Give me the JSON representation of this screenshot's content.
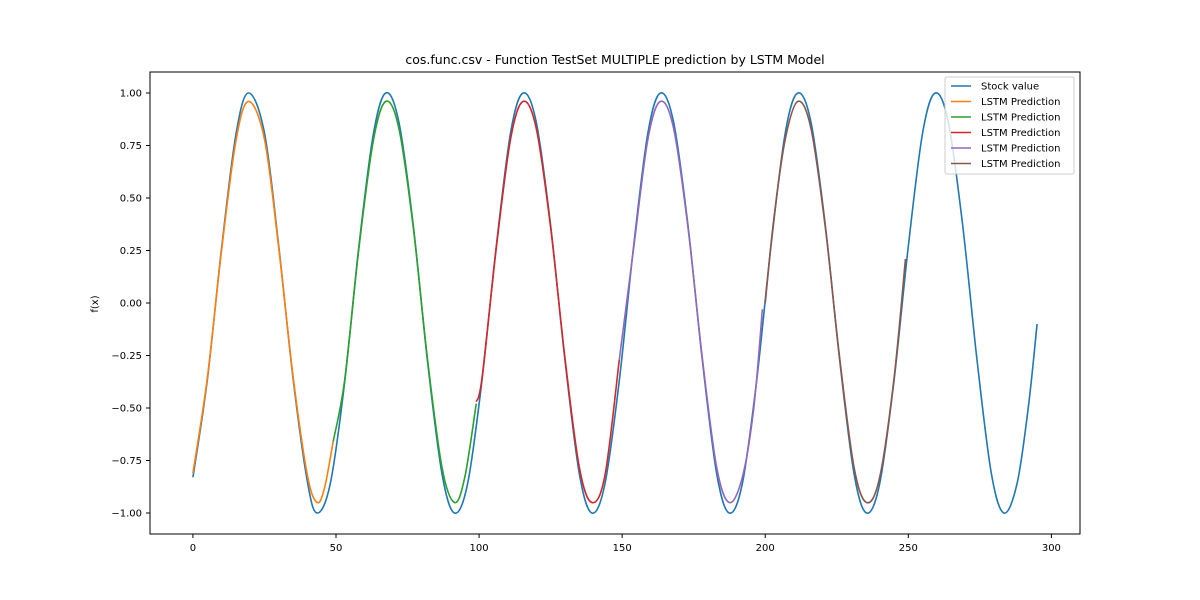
{
  "chart_data": {
    "type": "line",
    "title": "cos.func.csv - Function TestSet MULTIPLE prediction by LSTM Model",
    "xlabel": "",
    "ylabel": "f(x)",
    "xlim": [
      -15,
      310
    ],
    "ylim": [
      -1.1,
      1.1
    ],
    "xticks": [
      0,
      50,
      100,
      150,
      200,
      250,
      300
    ],
    "xtick_labels": [
      "0",
      "50",
      "100",
      "150",
      "200",
      "250",
      "300"
    ],
    "yticks": [
      -1.0,
      -0.75,
      -0.5,
      -0.25,
      0.0,
      0.25,
      0.5,
      0.75,
      1.0
    ],
    "ytick_labels": [
      "−1.00",
      "−0.75",
      "−0.50",
      "−0.25",
      "0.00",
      "0.25",
      "0.50",
      "0.75",
      "1.00"
    ],
    "grid": false,
    "legend_position": "top-right",
    "series": [
      {
        "name": "Stock value",
        "color": "#1f77b4",
        "x": [
          0,
          5,
          10,
          15,
          19.4,
          25,
          30,
          35,
          40,
          43.4,
          48,
          53,
          58,
          63,
          67.4,
          72,
          77,
          82,
          87,
          91.4,
          96,
          101,
          106,
          111,
          115.4,
          120,
          125,
          130,
          135,
          139.4,
          144,
          149,
          154,
          159,
          163.4,
          168,
          173,
          178,
          183,
          187.4,
          192,
          197,
          202,
          207,
          211.4,
          216,
          221,
          226,
          231,
          235.4,
          240,
          245,
          250,
          255,
          259.4,
          264,
          269,
          274,
          279,
          283.4,
          288,
          292,
          295
        ],
        "y": [
          -0.83,
          -0.37,
          0.26,
          0.8,
          1.0,
          0.81,
          0.27,
          -0.36,
          -0.85,
          -1.0,
          -0.86,
          -0.38,
          0.27,
          0.8,
          1.0,
          0.86,
          0.37,
          -0.28,
          -0.81,
          -1.0,
          -0.86,
          -0.37,
          0.27,
          0.81,
          1.0,
          0.86,
          0.37,
          -0.27,
          -0.81,
          -1.0,
          -0.86,
          -0.37,
          0.27,
          0.81,
          1.0,
          0.86,
          0.37,
          -0.27,
          -0.81,
          -1.0,
          -0.86,
          -0.37,
          0.27,
          0.81,
          1.0,
          0.86,
          0.37,
          -0.27,
          -0.81,
          -1.0,
          -0.86,
          -0.37,
          0.27,
          0.81,
          1.0,
          0.86,
          0.37,
          -0.27,
          -0.81,
          -1.0,
          -0.86,
          -0.49,
          -0.1
        ]
      },
      {
        "name": "LSTM Prediction",
        "color": "#ff7f0e",
        "x": [
          0,
          5,
          10,
          15,
          19.4,
          25,
          30,
          35,
          40,
          43.4,
          46,
          49
        ],
        "y": [
          -0.81,
          -0.36,
          0.25,
          0.77,
          0.96,
          0.78,
          0.26,
          -0.35,
          -0.82,
          -0.95,
          -0.88,
          -0.66
        ]
      },
      {
        "name": "LSTM Prediction",
        "color": "#2ca02c",
        "x": [
          49,
          53,
          58,
          63,
          67.4,
          72,
          77,
          82,
          87,
          91.4,
          95,
          99
        ],
        "y": [
          -0.66,
          -0.37,
          0.26,
          0.77,
          0.96,
          0.83,
          0.36,
          -0.27,
          -0.78,
          -0.95,
          -0.83,
          -0.48
        ]
      },
      {
        "name": "LSTM Prediction",
        "color": "#d62728",
        "x": [
          99,
          101,
          106,
          111,
          115.4,
          120,
          125,
          130,
          135,
          139.4,
          144,
          149
        ],
        "y": [
          -0.47,
          -0.36,
          0.26,
          0.78,
          0.96,
          0.83,
          0.36,
          -0.26,
          -0.78,
          -0.95,
          -0.82,
          -0.27
        ]
      },
      {
        "name": "LSTM Prediction",
        "color": "#9467bd",
        "x": [
          149,
          154,
          159,
          163.4,
          168,
          173,
          178,
          183,
          187.4,
          192,
          196,
          199
        ],
        "y": [
          -0.27,
          0.26,
          0.78,
          0.96,
          0.83,
          0.36,
          -0.26,
          -0.78,
          -0.95,
          -0.83,
          -0.5,
          -0.03
        ]
      },
      {
        "name": "LSTM Prediction",
        "color": "#8c564b",
        "x": [
          200,
          203,
          207,
          211.4,
          216,
          221,
          226,
          231,
          235.4,
          240,
          245,
          249
        ],
        "y": [
          0.0,
          0.4,
          0.78,
          0.96,
          0.83,
          0.36,
          -0.26,
          -0.78,
          -0.95,
          -0.83,
          -0.36,
          0.21
        ]
      }
    ]
  }
}
